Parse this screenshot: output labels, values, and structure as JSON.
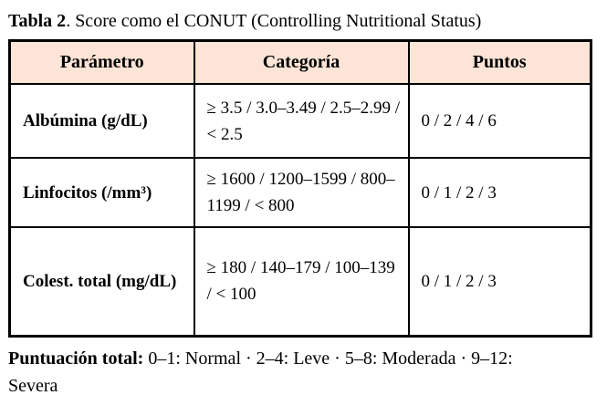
{
  "title": {
    "bold": "Tabla 2",
    "rest": ". Score como el CONUT (Controlling Nutritional Status)"
  },
  "table": {
    "header_bg": "#fce4d6",
    "border_color": "#000000",
    "columns": [
      "Parámetro",
      "Categoría",
      "Puntos"
    ],
    "rows": [
      {
        "parametro": "Albúmina (g/dL)",
        "categoria": "≥ 3.5 / 3.0–3.49 / 2.5–2.99 / < 2.5",
        "puntos": "0 / 2 / 4 / 6"
      },
      {
        "parametro": "Linfocitos (/mm³)",
        "categoria": "≥ 1600 / 1200–1599 / 800–1199 / < 800",
        "puntos": "0 / 1 / 2 / 3"
      },
      {
        "parametro": "Colest. total (mg/dL)",
        "categoria": "≥ 180 / 140–179 / 100–139 / < 100",
        "puntos": "0 / 1 / 2 / 3"
      }
    ]
  },
  "footer": {
    "bold": "Puntuación total:",
    "rest": " 0–1: Normal · 2–4: Leve · 5–8: Moderada · 9–12: Severa"
  }
}
